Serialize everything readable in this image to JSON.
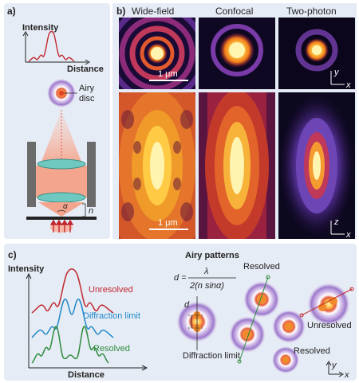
{
  "panel_a": {
    "label": "a)",
    "intensity_label": "Intensity",
    "distance_label": "Distance",
    "airy_label_1": "Airy",
    "airy_label_2": "disc",
    "alpha": "α",
    "n": "n"
  },
  "panel_b": {
    "label": "b)",
    "columns": [
      "Wide-field",
      "Confocal",
      "Two-photon"
    ],
    "scale_top": "1 μm",
    "scale_bottom": "1 μm",
    "axes_top": [
      "y",
      "x"
    ],
    "axes_bottom": [
      "z",
      "x"
    ]
  },
  "panel_c": {
    "label": "c)",
    "intensity_label": "Intensity",
    "distance_label": "Distance",
    "curves": [
      {
        "label": "Unresolved",
        "color": "#c0272d"
      },
      {
        "label": "Diffraction limit",
        "color": "#1e88c7"
      },
      {
        "label": "Resolved",
        "color": "#2e8b3d"
      }
    ],
    "title": "Airy patterns",
    "formula_lhs": "d =",
    "formula_num": "λ",
    "formula_den": "2(n sinα)",
    "d_label": "d",
    "diffraction_limit": "Diffraction limit",
    "resolved_1": "Resolved",
    "resolved_2": "Resolved",
    "unresolved": "Unresolved",
    "axes": [
      "y",
      "x"
    ]
  },
  "colors": {
    "panel_bg": "#e6ecf6",
    "wave_red": "#c0272d",
    "airy_purple": "#8c63c6",
    "lens_teal": "#6fc9c0"
  }
}
